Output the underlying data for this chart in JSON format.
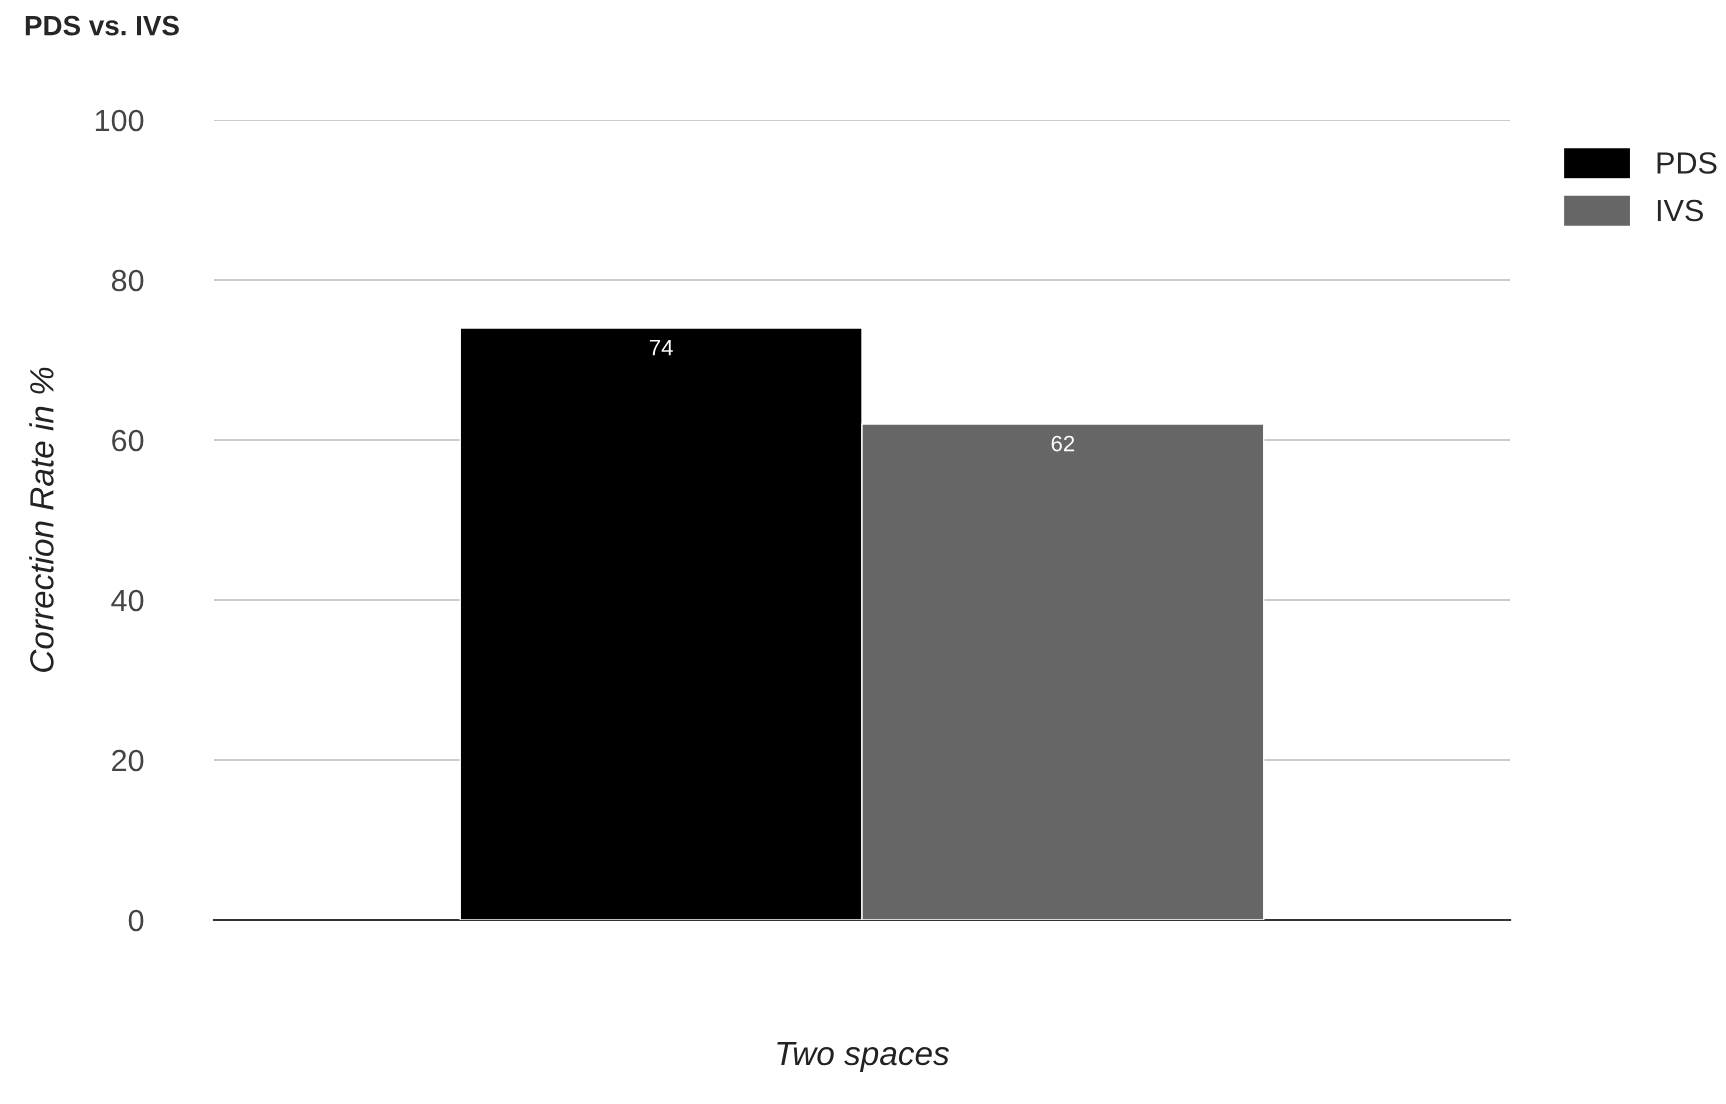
{
  "chart_data": {
    "type": "bar",
    "title": "PDS vs. IVS",
    "xlabel": "Two spaces",
    "ylabel": "Correction Rate in %",
    "categories": [
      null
    ],
    "series": [
      {
        "name": "PDS",
        "color": "#000000",
        "values": [
          74
        ]
      },
      {
        "name": "IVS",
        "color": "#666666",
        "values": [
          62
        ]
      }
    ],
    "ylim": [
      0,
      100
    ],
    "yticks": [
      0,
      20,
      40,
      60,
      80,
      100
    ],
    "grid": "y",
    "legend": "top right",
    "data_labels": true
  }
}
